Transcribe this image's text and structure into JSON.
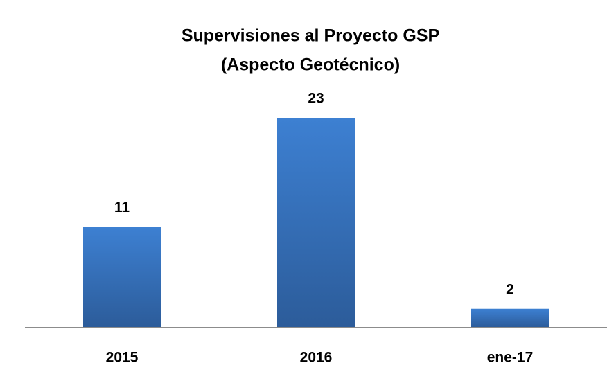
{
  "chart_data": {
    "type": "bar",
    "title": [
      "Supervisiones al Proyecto GSP",
      "(Aspecto Geotécnico)"
    ],
    "categories": [
      "2015",
      "2016",
      "ene-17"
    ],
    "values": [
      11,
      23,
      2
    ],
    "color": "#3877c6"
  }
}
